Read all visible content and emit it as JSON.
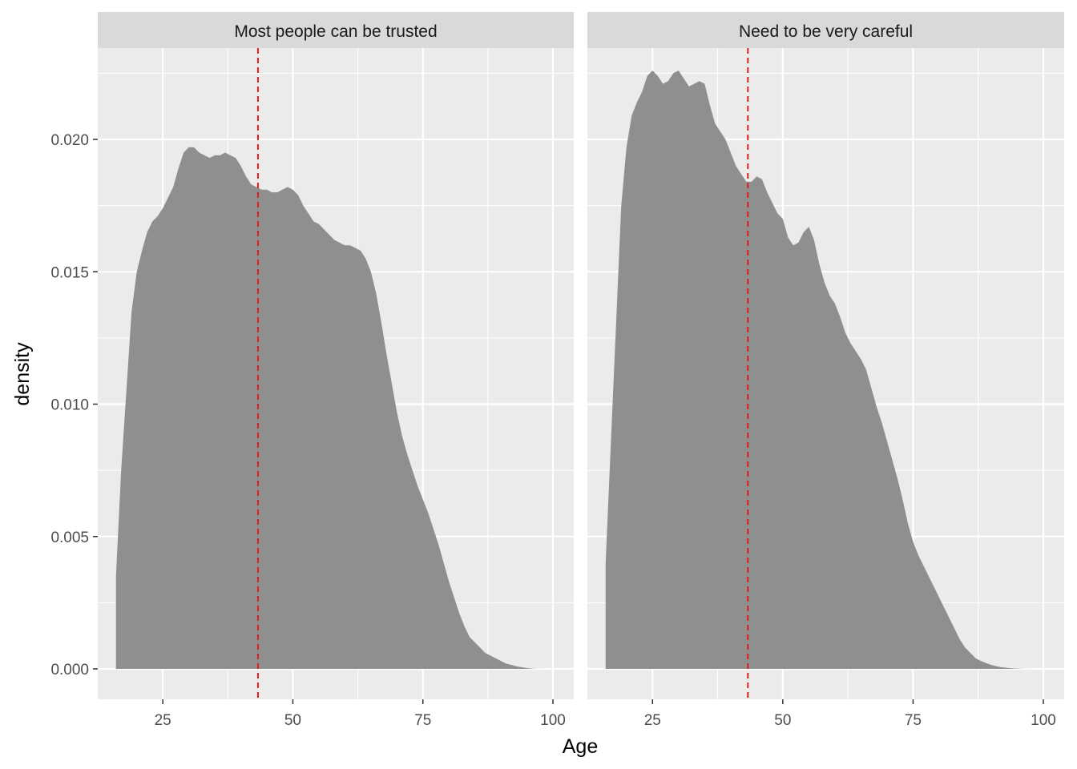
{
  "chart_data": {
    "type": "area",
    "xlabel": "Age",
    "ylabel": "density",
    "xlim": [
      12.5,
      104
    ],
    "ylim": [
      -0.00115,
      0.02345
    ],
    "x_ticks": [
      25,
      50,
      75,
      100
    ],
    "x_tick_labels": [
      "25",
      "50",
      "75",
      "100"
    ],
    "y_ticks": [
      0,
      0.005,
      0.01,
      0.015,
      0.02
    ],
    "y_tick_labels": [
      "0.000",
      "0.005",
      "0.010",
      "0.015",
      "0.020"
    ],
    "grid": true,
    "colors": {
      "panel_bg": "#EBEBEB",
      "strip_bg": "#D9D9D9",
      "grid": "#FFFFFF",
      "fill": "#8F8F8F",
      "mean_line": "#E41A1C"
    },
    "panels": [
      {
        "label": "Most people can be trusted",
        "mean_age": 43.3,
        "points": [
          [
            16,
            0
          ],
          [
            16,
            0.0035
          ],
          [
            17,
            0.0075
          ],
          [
            18,
            0.0105
          ],
          [
            19,
            0.0135
          ],
          [
            20,
            0.015
          ],
          [
            21,
            0.0158
          ],
          [
            22,
            0.0165
          ],
          [
            23,
            0.0169
          ],
          [
            24,
            0.0171
          ],
          [
            25,
            0.0174
          ],
          [
            26,
            0.0178
          ],
          [
            27,
            0.0182
          ],
          [
            28,
            0.0189
          ],
          [
            29,
            0.0195
          ],
          [
            30,
            0.0197
          ],
          [
            31,
            0.0197
          ],
          [
            32,
            0.0195
          ],
          [
            33,
            0.0194
          ],
          [
            34,
            0.0193
          ],
          [
            35,
            0.0194
          ],
          [
            36,
            0.0194
          ],
          [
            37,
            0.0195
          ],
          [
            38,
            0.0194
          ],
          [
            39,
            0.0193
          ],
          [
            40,
            0.019
          ],
          [
            41,
            0.0186
          ],
          [
            42,
            0.0183
          ],
          [
            43,
            0.0182
          ],
          [
            44,
            0.0181
          ],
          [
            45,
            0.0181
          ],
          [
            46,
            0.018
          ],
          [
            47,
            0.018
          ],
          [
            48,
            0.0181
          ],
          [
            49,
            0.0182
          ],
          [
            50,
            0.0181
          ],
          [
            51,
            0.0179
          ],
          [
            52,
            0.0175
          ],
          [
            53,
            0.0172
          ],
          [
            54,
            0.0169
          ],
          [
            55,
            0.0168
          ],
          [
            56,
            0.0166
          ],
          [
            57,
            0.0164
          ],
          [
            58,
            0.0162
          ],
          [
            59,
            0.0161
          ],
          [
            60,
            0.016
          ],
          [
            61,
            0.016
          ],
          [
            62,
            0.0159
          ],
          [
            63,
            0.0158
          ],
          [
            64,
            0.0155
          ],
          [
            65,
            0.015
          ],
          [
            66,
            0.0142
          ],
          [
            67,
            0.0131
          ],
          [
            68,
            0.0119
          ],
          [
            69,
            0.0108
          ],
          [
            70,
            0.0097
          ],
          [
            71,
            0.0088
          ],
          [
            72,
            0.0081
          ],
          [
            73,
            0.0075
          ],
          [
            74,
            0.0069
          ],
          [
            75,
            0.0064
          ],
          [
            76,
            0.0059
          ],
          [
            77,
            0.0053
          ],
          [
            78,
            0.0047
          ],
          [
            79,
            0.004
          ],
          [
            80,
            0.0033
          ],
          [
            81,
            0.0027
          ],
          [
            82,
            0.0021
          ],
          [
            83,
            0.0016
          ],
          [
            84,
            0.0012
          ],
          [
            85,
            0.001
          ],
          [
            86,
            0.0008
          ],
          [
            87,
            0.0006
          ],
          [
            88,
            0.0005
          ],
          [
            89,
            0.0004
          ],
          [
            90,
            0.0003
          ],
          [
            91,
            0.0002
          ],
          [
            92,
            0.00015
          ],
          [
            93,
            0.0001
          ],
          [
            94,
            6e-05
          ],
          [
            95,
            3e-05
          ],
          [
            96,
            1e-05
          ],
          [
            97,
            5e-06
          ],
          [
            100,
            0
          ],
          [
            100,
            0
          ]
        ]
      },
      {
        "label": "Need to be very careful",
        "mean_age": 43.3,
        "points": [
          [
            16,
            0
          ],
          [
            16,
            0.004
          ],
          [
            17,
            0.0085
          ],
          [
            18,
            0.013
          ],
          [
            19,
            0.0175
          ],
          [
            20,
            0.0197
          ],
          [
            21,
            0.0209
          ],
          [
            22,
            0.0214
          ],
          [
            23,
            0.0218
          ],
          [
            24,
            0.0224
          ],
          [
            25,
            0.0226
          ],
          [
            26,
            0.0224
          ],
          [
            27,
            0.0221
          ],
          [
            28,
            0.0222
          ],
          [
            29,
            0.0225
          ],
          [
            30,
            0.0226
          ],
          [
            31,
            0.0223
          ],
          [
            32,
            0.022
          ],
          [
            33,
            0.0221
          ],
          [
            34,
            0.0222
          ],
          [
            35,
            0.0221
          ],
          [
            36,
            0.0213
          ],
          [
            37,
            0.0206
          ],
          [
            38,
            0.0203
          ],
          [
            39,
            0.02
          ],
          [
            40,
            0.0195
          ],
          [
            41,
            0.019
          ],
          [
            42,
            0.0187
          ],
          [
            43,
            0.0184
          ],
          [
            44,
            0.0184
          ],
          [
            45,
            0.0186
          ],
          [
            46,
            0.0185
          ],
          [
            47,
            0.018
          ],
          [
            48,
            0.0176
          ],
          [
            49,
            0.0172
          ],
          [
            50,
            0.017
          ],
          [
            51,
            0.0163
          ],
          [
            52,
            0.016
          ],
          [
            53,
            0.0161
          ],
          [
            54,
            0.0165
          ],
          [
            55,
            0.0167
          ],
          [
            56,
            0.0162
          ],
          [
            57,
            0.0153
          ],
          [
            58,
            0.0146
          ],
          [
            59,
            0.0141
          ],
          [
            60,
            0.0138
          ],
          [
            61,
            0.0133
          ],
          [
            62,
            0.0127
          ],
          [
            63,
            0.0123
          ],
          [
            64,
            0.012
          ],
          [
            65,
            0.0117
          ],
          [
            66,
            0.0113
          ],
          [
            67,
            0.0106
          ],
          [
            68,
            0.0099
          ],
          [
            69,
            0.0093
          ],
          [
            70,
            0.0086
          ],
          [
            71,
            0.0079
          ],
          [
            72,
            0.0072
          ],
          [
            73,
            0.0064
          ],
          [
            74,
            0.0055
          ],
          [
            75,
            0.0048
          ],
          [
            76,
            0.0043
          ],
          [
            77,
            0.0039
          ],
          [
            78,
            0.0035
          ],
          [
            79,
            0.0031
          ],
          [
            80,
            0.0027
          ],
          [
            81,
            0.0023
          ],
          [
            82,
            0.0019
          ],
          [
            83,
            0.0015
          ],
          [
            84,
            0.0011
          ],
          [
            85,
            0.0008
          ],
          [
            86,
            0.0006
          ],
          [
            87,
            0.0004
          ],
          [
            88,
            0.0003
          ],
          [
            89,
            0.00022
          ],
          [
            90,
            0.00015
          ],
          [
            91,
            0.0001
          ],
          [
            92,
            6e-05
          ],
          [
            93,
            4e-05
          ],
          [
            94,
            2e-05
          ],
          [
            95,
            1e-05
          ],
          [
            96,
            5e-06
          ],
          [
            99,
            0
          ],
          [
            99,
            0
          ]
        ]
      }
    ]
  }
}
